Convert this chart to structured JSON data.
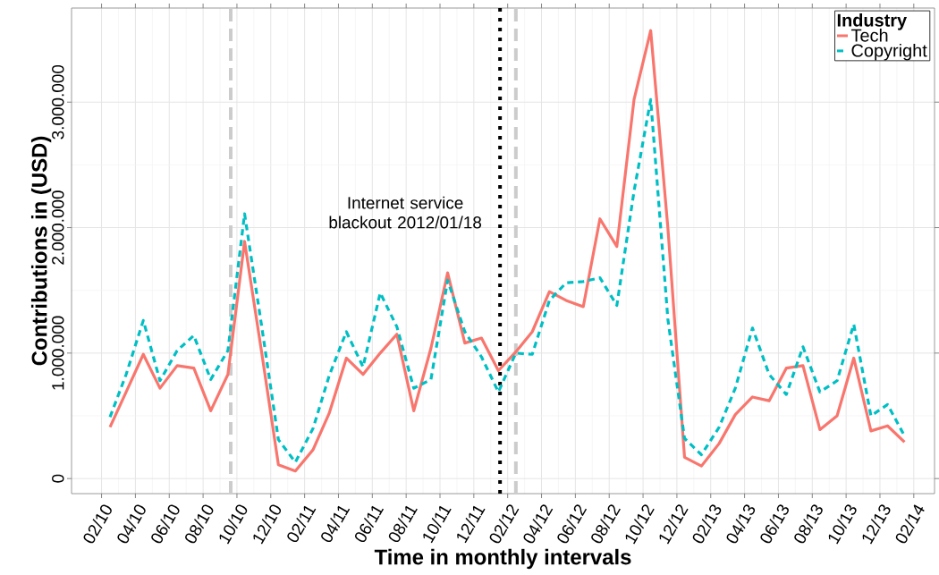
{
  "chart_data": {
    "type": "line",
    "xlabel": "Time in monthly intervals",
    "ylabel": "Contributions in (USD)",
    "legend_title": "Industry",
    "x": [
      "2010-02-15",
      "2010-03-15",
      "2010-04-15",
      "2010-05-15",
      "2010-06-15",
      "2010-07-15",
      "2010-08-15",
      "2010-09-15",
      "2010-10-15",
      "2010-11-15",
      "2010-12-15",
      "2011-01-15",
      "2011-02-15",
      "2011-03-15",
      "2011-04-15",
      "2011-05-15",
      "2011-06-15",
      "2011-07-15",
      "2011-08-15",
      "2011-09-15",
      "2011-10-15",
      "2011-11-15",
      "2011-12-15",
      "2012-01-15",
      "2012-02-15",
      "2012-03-15",
      "2012-04-15",
      "2012-05-15",
      "2012-06-15",
      "2012-07-15",
      "2012-08-15",
      "2012-09-15",
      "2012-10-15",
      "2012-11-15",
      "2012-12-15",
      "2013-01-15",
      "2013-02-15",
      "2013-03-15",
      "2013-04-15",
      "2013-05-15",
      "2013-06-15",
      "2013-07-15",
      "2013-08-15",
      "2013-09-15",
      "2013-10-15",
      "2013-11-15",
      "2013-12-15",
      "2014-01-15"
    ],
    "series": [
      {
        "name": "Tech",
        "color": "#f8766d",
        "line_style": "solid",
        "values": [
          410000,
          690000,
          990000,
          720000,
          900000,
          880000,
          540000,
          830000,
          1890000,
          1000000,
          110000,
          60000,
          230000,
          520000,
          960000,
          830000,
          1000000,
          1150000,
          540000,
          1040000,
          1640000,
          1080000,
          1120000,
          860000,
          1010000,
          1170000,
          1490000,
          1420000,
          1370000,
          2070000,
          1850000,
          3020000,
          3570000,
          2000000,
          170000,
          100000,
          280000,
          510000,
          650000,
          620000,
          880000,
          900000,
          390000,
          500000,
          960000,
          380000,
          420000,
          290000
        ]
      },
      {
        "name": "Copyright",
        "color": "#00bfc4",
        "line_style": "dashed",
        "values": [
          490000,
          830000,
          1260000,
          780000,
          1020000,
          1140000,
          790000,
          1020000,
          2110000,
          1210000,
          310000,
          130000,
          400000,
          820000,
          1170000,
          890000,
          1480000,
          1210000,
          720000,
          790000,
          1580000,
          1170000,
          970000,
          690000,
          1000000,
          990000,
          1420000,
          1560000,
          1570000,
          1600000,
          1380000,
          2290000,
          3020000,
          1270000,
          320000,
          190000,
          410000,
          720000,
          1200000,
          830000,
          670000,
          1050000,
          690000,
          780000,
          1230000,
          500000,
          590000,
          340000
        ]
      }
    ],
    "xlim": [
      "2009-12-08",
      "2014-03-08"
    ],
    "xticks": [
      {
        "value": "2010-02",
        "label": "02/10"
      },
      {
        "value": "2010-04",
        "label": "04/10"
      },
      {
        "value": "2010-06",
        "label": "06/10"
      },
      {
        "value": "2010-08",
        "label": "08/10"
      },
      {
        "value": "2010-10",
        "label": "10/10"
      },
      {
        "value": "2010-12",
        "label": "12/10"
      },
      {
        "value": "2011-02",
        "label": "02/11"
      },
      {
        "value": "2011-04",
        "label": "04/11"
      },
      {
        "value": "2011-06",
        "label": "06/11"
      },
      {
        "value": "2011-08",
        "label": "08/11"
      },
      {
        "value": "2011-10",
        "label": "10/11"
      },
      {
        "value": "2011-12",
        "label": "12/11"
      },
      {
        "value": "2012-02",
        "label": "02/12"
      },
      {
        "value": "2012-04",
        "label": "04/12"
      },
      {
        "value": "2012-06",
        "label": "06/12"
      },
      {
        "value": "2012-08",
        "label": "08/12"
      },
      {
        "value": "2012-10",
        "label": "10/12"
      },
      {
        "value": "2012-12",
        "label": "12/12"
      },
      {
        "value": "2013-02",
        "label": "02/13"
      },
      {
        "value": "2013-04",
        "label": "04/13"
      },
      {
        "value": "2013-06",
        "label": "06/13"
      },
      {
        "value": "2013-08",
        "label": "08/13"
      },
      {
        "value": "2013-10",
        "label": "10/13"
      },
      {
        "value": "2013-12",
        "label": "12/13"
      },
      {
        "value": "2014-02",
        "label": "02/14"
      }
    ],
    "ylim": [
      -120000,
      3750000
    ],
    "yticks": [
      0,
      {
        "value": 1000000,
        "label": "1.000.000"
      },
      {
        "value": 2000000,
        "label": "2.000.000"
      },
      {
        "value": 3000000,
        "label": "3.000.000"
      }
    ],
    "ref_lines": [
      {
        "axis": "x",
        "value": "2010-09-20",
        "color": "#cccccc",
        "line_style": "dashed"
      },
      {
        "axis": "x",
        "value": "2012-01-18",
        "color": "#000000",
        "line_style": "dotted",
        "label": "Internet service blackout 2012/01/18"
      },
      {
        "axis": "x",
        "value": "2012-02-15",
        "color": "#cccccc",
        "line_style": "dashed"
      }
    ],
    "grid": true,
    "legend": "top right"
  }
}
